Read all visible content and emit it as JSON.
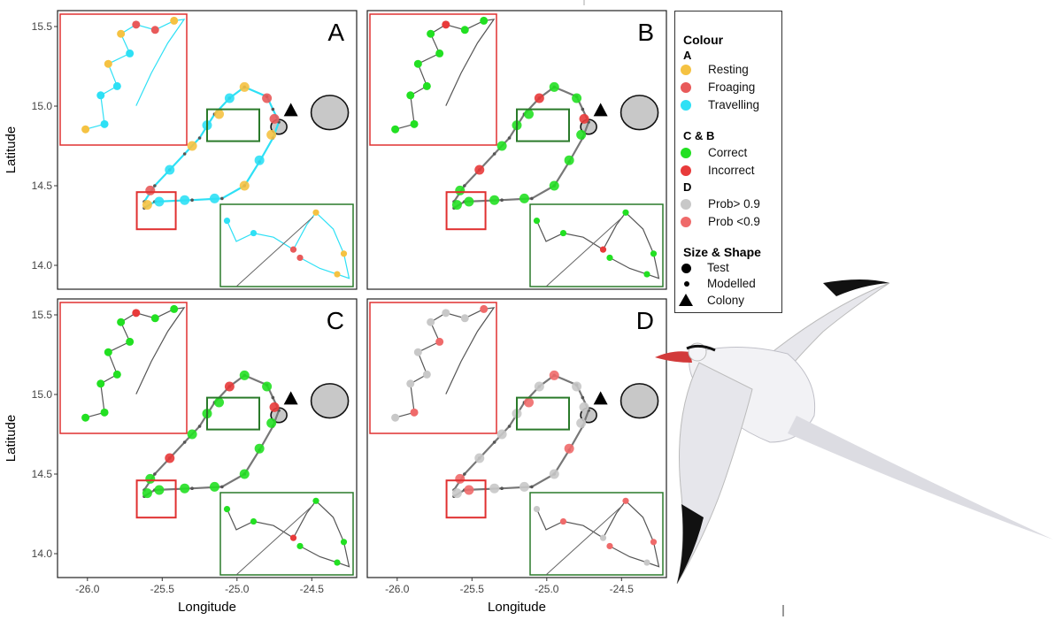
{
  "chart_data": {
    "type": "scatter",
    "axes": {
      "xlabel": "Longitude",
      "ylabel": "Latitude",
      "xlim": [
        -26.2,
        -24.2
      ],
      "ylim": [
        13.85,
        15.6
      ],
      "xticks": [
        -26.0,
        -25.5,
        -25.0,
        -24.5
      ],
      "yticks": [
        14.0,
        14.5,
        15.0,
        15.5
      ],
      "xtick_labels": [
        "-26.0",
        "-25.5",
        "-25.0",
        "-24.5"
      ],
      "ytick_labels": [
        "14.0",
        "14.5",
        "15.0",
        "15.5"
      ]
    },
    "panels": [
      {
        "label": "A",
        "scheme": "behaviour"
      },
      {
        "label": "B",
        "scheme": "accuracy"
      },
      {
        "label": "C",
        "scheme": "accuracy"
      },
      {
        "label": "D",
        "scheme": "probability"
      }
    ],
    "colony": {
      "lon": -24.64,
      "lat": 14.97
    },
    "track": [
      {
        "lon": -25.62,
        "lat": 14.36
      },
      {
        "lon": -25.55,
        "lat": 14.4
      },
      {
        "lon": -25.3,
        "lat": 14.41
      },
      {
        "lon": -25.1,
        "lat": 14.42
      },
      {
        "lon": -24.95,
        "lat": 14.5
      },
      {
        "lon": -24.85,
        "lat": 14.65
      },
      {
        "lon": -24.76,
        "lat": 14.8
      },
      {
        "lon": -24.72,
        "lat": 14.9
      },
      {
        "lon": -24.76,
        "lat": 14.98
      },
      {
        "lon": -24.8,
        "lat": 15.06
      },
      {
        "lon": -24.95,
        "lat": 15.12
      },
      {
        "lon": -25.05,
        "lat": 15.05
      },
      {
        "lon": -25.15,
        "lat": 14.95
      },
      {
        "lon": -25.25,
        "lat": 14.8
      },
      {
        "lon": -25.35,
        "lat": 14.7
      },
      {
        "lon": -25.45,
        "lat": 14.6
      },
      {
        "lon": -25.55,
        "lat": 14.5
      },
      {
        "lon": -25.62,
        "lat": 14.4
      }
    ],
    "points_behaviour": [
      {
        "lon": -25.6,
        "lat": 14.38,
        "behaviour": "Resting"
      },
      {
        "lon": -25.52,
        "lat": 14.4,
        "behaviour": "Travelling"
      },
      {
        "lon": -25.35,
        "lat": 14.41,
        "behaviour": "Travelling"
      },
      {
        "lon": -25.15,
        "lat": 14.42,
        "behaviour": "Travelling"
      },
      {
        "lon": -24.95,
        "lat": 14.5,
        "behaviour": "Resting"
      },
      {
        "lon": -24.85,
        "lat": 14.66,
        "behaviour": "Travelling"
      },
      {
        "lon": -24.77,
        "lat": 14.82,
        "behaviour": "Resting"
      },
      {
        "lon": -24.75,
        "lat": 14.92,
        "behaviour": "Froaging"
      },
      {
        "lon": -24.8,
        "lat": 15.05,
        "behaviour": "Froaging"
      },
      {
        "lon": -24.95,
        "lat": 15.12,
        "behaviour": "Resting"
      },
      {
        "lon": -25.05,
        "lat": 15.05,
        "behaviour": "Travelling"
      },
      {
        "lon": -25.12,
        "lat": 14.95,
        "behaviour": "Resting"
      },
      {
        "lon": -25.2,
        "lat": 14.88,
        "behaviour": "Travelling"
      },
      {
        "lon": -25.3,
        "lat": 14.75,
        "behaviour": "Resting"
      },
      {
        "lon": -25.45,
        "lat": 14.6,
        "behaviour": "Travelling"
      },
      {
        "lon": -25.58,
        "lat": 14.47,
        "behaviour": "Froaging"
      }
    ],
    "points_accuracy": [
      {
        "lon": -25.6,
        "lat": 14.38,
        "result": "Correct"
      },
      {
        "lon": -25.52,
        "lat": 14.4,
        "result": "Correct"
      },
      {
        "lon": -25.35,
        "lat": 14.41,
        "result": "Correct"
      },
      {
        "lon": -25.15,
        "lat": 14.42,
        "result": "Correct"
      },
      {
        "lon": -24.95,
        "lat": 14.5,
        "result": "Correct"
      },
      {
        "lon": -24.85,
        "lat": 14.66,
        "result": "Correct"
      },
      {
        "lon": -24.77,
        "lat": 14.82,
        "result": "Correct"
      },
      {
        "lon": -24.75,
        "lat": 14.92,
        "result": "Incorrect"
      },
      {
        "lon": -24.8,
        "lat": 15.05,
        "result": "Correct"
      },
      {
        "lon": -24.95,
        "lat": 15.12,
        "result": "Correct"
      },
      {
        "lon": -25.05,
        "lat": 15.05,
        "result": "Incorrect"
      },
      {
        "lon": -25.12,
        "lat": 14.95,
        "result": "Correct"
      },
      {
        "lon": -25.2,
        "lat": 14.88,
        "result": "Correct"
      },
      {
        "lon": -25.3,
        "lat": 14.75,
        "result": "Correct"
      },
      {
        "lon": -25.45,
        "lat": 14.6,
        "result": "Incorrect"
      },
      {
        "lon": -25.58,
        "lat": 14.47,
        "result": "Correct"
      }
    ],
    "points_probability": [
      {
        "lon": -25.6,
        "lat": 14.38,
        "prob": "Prob> 0.9"
      },
      {
        "lon": -25.52,
        "lat": 14.4,
        "prob": "Prob <0.9"
      },
      {
        "lon": -25.35,
        "lat": 14.41,
        "prob": "Prob> 0.9"
      },
      {
        "lon": -25.15,
        "lat": 14.42,
        "prob": "Prob> 0.9"
      },
      {
        "lon": -24.95,
        "lat": 14.5,
        "prob": "Prob> 0.9"
      },
      {
        "lon": -24.85,
        "lat": 14.66,
        "prob": "Prob <0.9"
      },
      {
        "lon": -24.77,
        "lat": 14.82,
        "prob": "Prob> 0.9"
      },
      {
        "lon": -24.75,
        "lat": 14.92,
        "prob": "Prob> 0.9"
      },
      {
        "lon": -24.8,
        "lat": 15.05,
        "prob": "Prob> 0.9"
      },
      {
        "lon": -24.95,
        "lat": 15.12,
        "prob": "Prob <0.9"
      },
      {
        "lon": -25.05,
        "lat": 15.05,
        "prob": "Prob> 0.9"
      },
      {
        "lon": -25.12,
        "lat": 14.95,
        "prob": "Prob <0.9"
      },
      {
        "lon": -25.2,
        "lat": 14.88,
        "prob": "Prob> 0.9"
      },
      {
        "lon": -25.3,
        "lat": 14.75,
        "prob": "Prob> 0.9"
      },
      {
        "lon": -25.45,
        "lat": 14.6,
        "prob": "Prob> 0.9"
      },
      {
        "lon": -25.58,
        "lat": 14.47,
        "prob": "Prob <0.9"
      }
    ],
    "islands": [
      {
        "name": "large",
        "lon": -24.38,
        "lat": 14.96
      },
      {
        "name": "small",
        "lon": -24.72,
        "lat": 14.87
      }
    ]
  },
  "legend": {
    "title": "Colour",
    "section_a": "A",
    "resting": "Resting",
    "foraging": "Froaging",
    "travelling": "Travelling",
    "section_cb": "C & B",
    "correct": "Correct",
    "incorrect": "Incorrect",
    "section_d": "D",
    "prob_high": "Prob> 0.9",
    "prob_low": "Prob <0.9",
    "size_title": "Size & Shape",
    "test": "Test",
    "modelled": "Modelled",
    "colony": "Colony"
  },
  "colors": {
    "resting": "#f5c242",
    "foraging": "#e85a5a",
    "travelling": "#2ee0f5",
    "correct": "#22e022",
    "incorrect": "#e83a3a",
    "prob_high": "#c8c8c8",
    "prob_low": "#ef6a6a",
    "track": "#777777",
    "inset_red": "#e03030",
    "inset_green": "#2a7a2a",
    "island": "#c8c8c8"
  },
  "bird": {
    "icon": "red-billed-tropicbird-illustration"
  }
}
